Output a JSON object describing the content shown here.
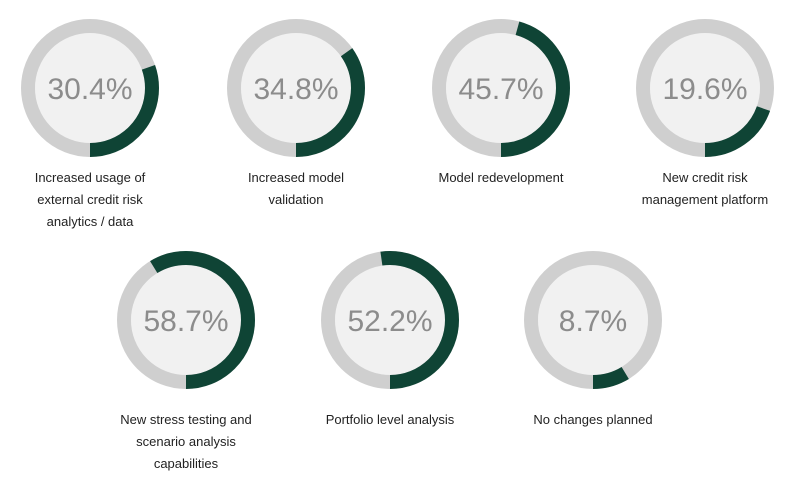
{
  "chart_data": {
    "type": "pie",
    "subtype": "progress-rings",
    "title": "",
    "unit": "%",
    "colors": {
      "fill": "#0f4435",
      "track": "#cfcfcf",
      "center": "#f1f1f1",
      "value_text": "#8c8c8c",
      "label_text": "#222222"
    },
    "items": [
      {
        "value": 30.4,
        "display": "30.4%",
        "label_lines": [
          "Increased usage  of",
          "external credit risk",
          "analytics / data"
        ]
      },
      {
        "value": 34.8,
        "display": "34.8%",
        "label_lines": [
          "Increased model",
          "validation"
        ]
      },
      {
        "value": 45.7,
        "display": "45.7%",
        "label_lines": [
          "Model redevelopment"
        ]
      },
      {
        "value": 19.6,
        "display": "19.6%",
        "label_lines": [
          "New credit risk",
          "management platform"
        ]
      },
      {
        "value": 58.7,
        "display": "58.7%",
        "label_lines": [
          "New stress testing and",
          "scenario analysis",
          "capabilities"
        ]
      },
      {
        "value": 52.2,
        "display": "52.2%",
        "label_lines": [
          "Portfolio level analysis"
        ]
      },
      {
        "value": 8.7,
        "display": "8.7%",
        "label_lines": [
          "No changes planned"
        ]
      }
    ]
  }
}
